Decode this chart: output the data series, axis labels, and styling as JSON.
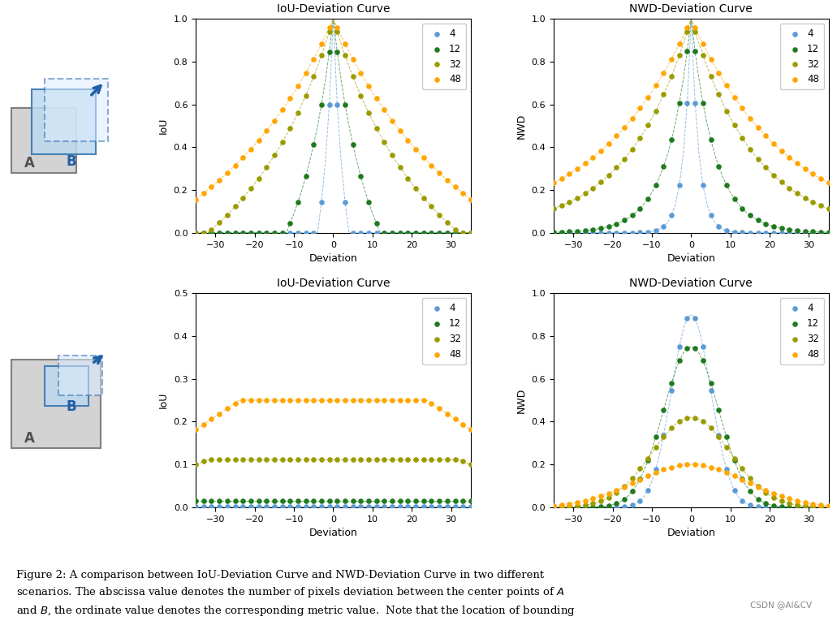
{
  "sizes": [
    4,
    12,
    32,
    48
  ],
  "colors_s1": [
    "#5B9BD5",
    "#1F7A1F",
    "#9B9B00",
    "#FFA500"
  ],
  "colors_s2": [
    "#5B9BD5",
    "#1F7A1F",
    "#9B9B00",
    "#FFA500"
  ],
  "xlabel": "Deviation",
  "ylabel_iou": "IoU",
  "ylabel_nwd": "NWD",
  "title_iou": "IoU-Deviation Curve",
  "title_nwd": "NWD-Deviation Curve",
  "row1_iou_ylim": [
    0.0,
    1.0
  ],
  "row1_nwd_ylim": [
    0.0,
    1.0
  ],
  "row2_iou_ylim": [
    0.0,
    0.5
  ],
  "row2_nwd_ylim": [
    0.0,
    1.0
  ],
  "xticks": [
    -30,
    -20,
    -10,
    0,
    10,
    20,
    30
  ],
  "caption_bold": "Figure 2:",
  "caption_rest": " A comparison between IoU-Deviation Curve and NWD-Deviation Curve in two different\nscenarios. The abscissa value denotes the number of pixels deviation between the center points of ",
  "caption_italic_A": "A",
  "caption_rest2": "\nand ",
  "caption_italic_B": "B",
  "caption_rest3": ", the ordinate value denotes the corresponding metric value. Note that the location of bounding\nbox can only change discretely, the Value-Deviation curve is presented in the form of scatter diagram.",
  "watermark": "CSDN @AI&CV"
}
